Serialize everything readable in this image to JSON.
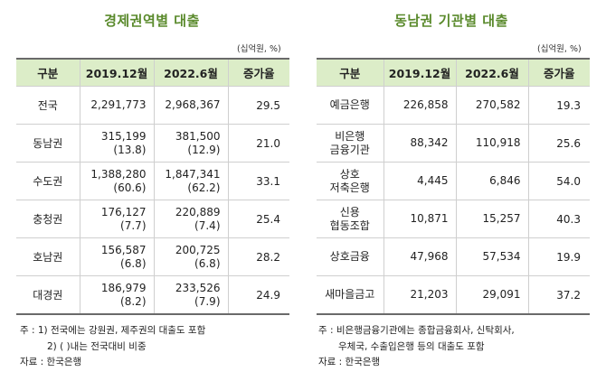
{
  "left": {
    "title": "경제권역별 대출",
    "unit": "(십억원, %)",
    "headers": [
      "구분",
      "2019.12월",
      "2022.6월",
      "증가율"
    ],
    "rows": [
      {
        "name": "전국",
        "v2019": "2,291,773",
        "s2019": "",
        "v2022": "2,968,367",
        "s2022": "",
        "rate": "29.5"
      },
      {
        "name": "동남권",
        "v2019": "315,199",
        "s2019": "(13.8)",
        "v2022": "381,500",
        "s2022": "(12.9)",
        "rate": "21.0"
      },
      {
        "name": "수도권",
        "v2019": "1,388,280",
        "s2019": "(60.6)",
        "v2022": "1,847,341",
        "s2022": "(62.2)",
        "rate": "33.1"
      },
      {
        "name": "충청권",
        "v2019": "176,127",
        "s2019": "(7.7)",
        "v2022": "220,889",
        "s2022": "(7.4)",
        "rate": "25.4"
      },
      {
        "name": "호남권",
        "v2019": "156,587",
        "s2019": "(6.8)",
        "v2022": "200,725",
        "s2022": "(6.8)",
        "rate": "28.2"
      },
      {
        "name": "대경권",
        "v2019": "186,979",
        "s2019": "(8.2)",
        "v2022": "233,526",
        "s2022": "(7.9)",
        "rate": "24.9"
      }
    ],
    "notes": [
      "주 : 1) 전국에는 강원권, 제주권의 대출도 포함",
      "2) (     )내는 전국대비 비중",
      "자료 : 한국은행"
    ]
  },
  "right": {
    "title": "동남권 기관별 대출",
    "unit": "(십억원, %)",
    "headers": [
      "구분",
      "2019.12월",
      "2022.6월",
      "증가율"
    ],
    "rows": [
      {
        "name1": "예금은행",
        "name2": "",
        "v2019": "226,858",
        "v2022": "270,582",
        "rate": "19.3"
      },
      {
        "name1": "비은행",
        "name2": "금융기관",
        "v2019": "88,342",
        "v2022": "110,918",
        "rate": "25.6"
      },
      {
        "name1": "상호",
        "name2": "저축은행",
        "v2019": "4,445",
        "v2022": "6,846",
        "rate": "54.0"
      },
      {
        "name1": "신용",
        "name2": "협동조합",
        "v2019": "10,871",
        "v2022": "15,257",
        "rate": "40.3"
      },
      {
        "name1": "상호금융",
        "name2": "",
        "v2019": "47,968",
        "v2022": "57,534",
        "rate": "19.9"
      },
      {
        "name1": "새마을금고",
        "name2": "",
        "v2019": "21,203",
        "v2022": "29,091",
        "rate": "37.2"
      }
    ],
    "notes": [
      "주 : 비은행금융기관에는 종합금융회사, 신탁회사,",
      "우체국, 수출입은행 등의 대출도 포함",
      "자료 : 한국은행"
    ]
  }
}
